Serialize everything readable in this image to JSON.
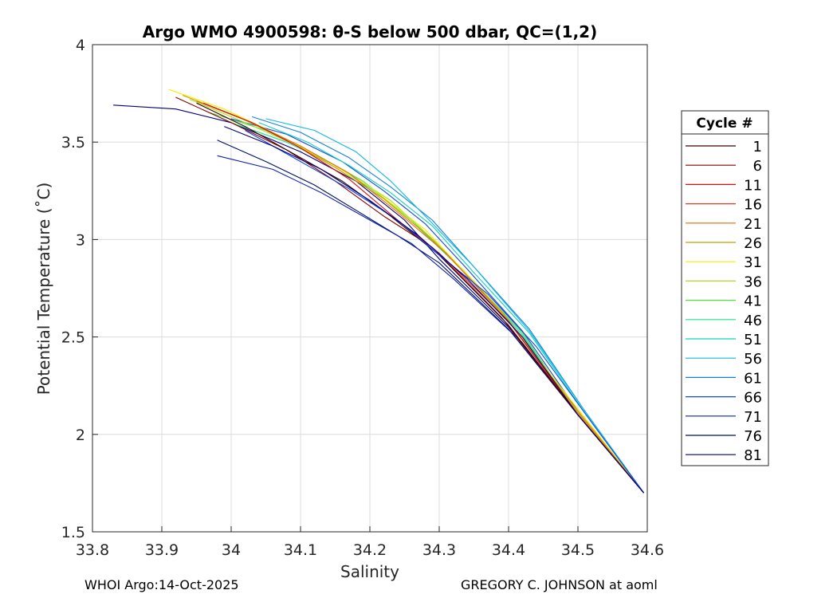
{
  "chart_data": {
    "type": "line",
    "title": "Argo WMO 4900598: θ-S below 500 dbar,  QC=(1,2)",
    "xlabel": "Salinity",
    "ylabel": "Potential Temperature (˚C)",
    "xlim": [
      33.8,
      34.6
    ],
    "ylim": [
      1.5,
      4
    ],
    "xticks": [
      33.8,
      33.9,
      34.0,
      34.1,
      34.2,
      34.3,
      34.4,
      34.5,
      34.6
    ],
    "xtick_labels": [
      "33.8",
      "33.9",
      "34",
      "34.1",
      "34.2",
      "34.3",
      "34.4",
      "34.5",
      "34.6"
    ],
    "yticks": [
      1.5,
      2,
      2.5,
      3,
      3.5,
      4
    ],
    "ytick_labels": [
      "1.5",
      "2",
      "2.5",
      "3",
      "3.5",
      "4"
    ],
    "grid": true,
    "legend": {
      "title": "Cycle #",
      "placement": "outside-right",
      "entries": [
        {
          "label": "1",
          "color": "#3a0000"
        },
        {
          "label": "6",
          "color": "#8a0000"
        },
        {
          "label": "11",
          "color": "#d41010"
        },
        {
          "label": "16",
          "color": "#e03a20"
        },
        {
          "label": "21",
          "color": "#e86a10"
        },
        {
          "label": "26",
          "color": "#c8a000"
        },
        {
          "label": "31",
          "color": "#f0f000"
        },
        {
          "label": "36",
          "color": "#a8e020"
        },
        {
          "label": "41",
          "color": "#50e040"
        },
        {
          "label": "46",
          "color": "#20e090"
        },
        {
          "label": "51",
          "color": "#10d0c0"
        },
        {
          "label": "56",
          "color": "#10b8e0"
        },
        {
          "label": "61",
          "color": "#1080e0"
        },
        {
          "label": "66",
          "color": "#1048e0"
        },
        {
          "label": "71",
          "color": "#1020b0"
        },
        {
          "label": "76",
          "color": "#001060"
        },
        {
          "label": "81",
          "color": "#000080"
        }
      ]
    },
    "series": [
      {
        "color": "#000080",
        "points": [
          [
            33.83,
            3.69
          ],
          [
            33.92,
            3.67
          ],
          [
            34.0,
            3.6
          ],
          [
            34.1,
            3.45
          ],
          [
            34.18,
            3.3
          ],
          [
            34.25,
            3.1
          ],
          [
            34.3,
            2.9
          ],
          [
            34.4,
            2.55
          ],
          [
            34.5,
            2.1
          ],
          [
            34.595,
            1.7
          ]
        ]
      },
      {
        "color": "#001060",
        "points": [
          [
            33.98,
            3.51
          ],
          [
            34.05,
            3.4
          ],
          [
            34.12,
            3.28
          ],
          [
            34.18,
            3.15
          ],
          [
            34.24,
            3.02
          ],
          [
            34.3,
            2.88
          ],
          [
            34.4,
            2.54
          ],
          [
            34.5,
            2.1
          ],
          [
            34.595,
            1.7
          ]
        ]
      },
      {
        "color": "#1020b0",
        "points": [
          [
            33.98,
            3.43
          ],
          [
            34.06,
            3.36
          ],
          [
            34.13,
            3.24
          ],
          [
            34.2,
            3.1
          ],
          [
            34.26,
            2.98
          ],
          [
            34.32,
            2.8
          ],
          [
            34.42,
            2.47
          ],
          [
            34.5,
            2.1
          ],
          [
            34.595,
            1.7
          ]
        ]
      },
      {
        "color": "#1048e0",
        "points": [
          [
            34.0,
            3.62
          ],
          [
            34.08,
            3.54
          ],
          [
            34.16,
            3.4
          ],
          [
            34.22,
            3.25
          ],
          [
            34.28,
            3.08
          ],
          [
            34.34,
            2.85
          ],
          [
            34.42,
            2.53
          ],
          [
            34.5,
            2.12
          ],
          [
            34.595,
            1.7
          ]
        ]
      },
      {
        "color": "#1080e0",
        "points": [
          [
            34.03,
            3.63
          ],
          [
            34.1,
            3.55
          ],
          [
            34.17,
            3.42
          ],
          [
            34.23,
            3.27
          ],
          [
            34.29,
            3.1
          ],
          [
            34.35,
            2.86
          ],
          [
            34.43,
            2.54
          ],
          [
            34.51,
            2.12
          ],
          [
            34.595,
            1.7
          ]
        ]
      },
      {
        "color": "#10b8e0",
        "points": [
          [
            34.05,
            3.62
          ],
          [
            34.12,
            3.56
          ],
          [
            34.18,
            3.45
          ],
          [
            34.23,
            3.3
          ],
          [
            34.28,
            3.12
          ],
          [
            34.35,
            2.86
          ],
          [
            34.43,
            2.53
          ],
          [
            34.51,
            2.12
          ],
          [
            34.595,
            1.7
          ]
        ]
      },
      {
        "color": "#10d0c0",
        "points": [
          [
            34.04,
            3.6
          ],
          [
            34.11,
            3.5
          ],
          [
            34.17,
            3.38
          ],
          [
            34.23,
            3.24
          ],
          [
            34.29,
            3.07
          ],
          [
            34.35,
            2.83
          ],
          [
            34.43,
            2.52
          ],
          [
            34.51,
            2.11
          ],
          [
            34.595,
            1.7
          ]
        ]
      },
      {
        "color": "#20e090",
        "points": [
          [
            34.0,
            3.6
          ],
          [
            34.08,
            3.5
          ],
          [
            34.15,
            3.38
          ],
          [
            34.21,
            3.24
          ],
          [
            34.27,
            3.06
          ],
          [
            34.34,
            2.82
          ],
          [
            34.42,
            2.51
          ],
          [
            34.5,
            2.1
          ],
          [
            34.595,
            1.7
          ]
        ]
      },
      {
        "color": "#50e040",
        "points": [
          [
            33.97,
            3.65
          ],
          [
            34.05,
            3.56
          ],
          [
            34.12,
            3.44
          ],
          [
            34.19,
            3.3
          ],
          [
            34.26,
            3.1
          ],
          [
            34.33,
            2.86
          ],
          [
            34.42,
            2.52
          ],
          [
            34.5,
            2.1
          ],
          [
            34.595,
            1.7
          ]
        ]
      },
      {
        "color": "#a8e020",
        "points": [
          [
            33.94,
            3.72
          ],
          [
            34.02,
            3.6
          ],
          [
            34.09,
            3.49
          ],
          [
            34.16,
            3.36
          ],
          [
            34.23,
            3.2
          ],
          [
            34.3,
            2.97
          ],
          [
            34.4,
            2.58
          ],
          [
            34.5,
            2.12
          ],
          [
            34.595,
            1.7
          ]
        ]
      },
      {
        "color": "#f0f000",
        "points": [
          [
            33.91,
            3.77
          ],
          [
            33.99,
            3.67
          ],
          [
            34.06,
            3.55
          ],
          [
            34.13,
            3.42
          ],
          [
            34.2,
            3.27
          ],
          [
            34.28,
            3.05
          ],
          [
            34.38,
            2.67
          ],
          [
            34.5,
            2.13
          ],
          [
            34.595,
            1.7
          ]
        ]
      },
      {
        "color": "#c8a000",
        "points": [
          [
            33.93,
            3.74
          ],
          [
            34.01,
            3.63
          ],
          [
            34.08,
            3.51
          ],
          [
            34.15,
            3.37
          ],
          [
            34.22,
            3.21
          ],
          [
            34.29,
            3.0
          ],
          [
            34.39,
            2.63
          ],
          [
            34.5,
            2.12
          ],
          [
            34.595,
            1.7
          ]
        ]
      },
      {
        "color": "#e86a10",
        "points": [
          [
            33.95,
            3.71
          ],
          [
            34.03,
            3.6
          ],
          [
            34.1,
            3.48
          ],
          [
            34.17,
            3.34
          ],
          [
            34.24,
            3.14
          ],
          [
            34.31,
            2.93
          ],
          [
            34.4,
            2.58
          ],
          [
            34.5,
            2.11
          ],
          [
            34.595,
            1.7
          ]
        ]
      },
      {
        "color": "#d41010",
        "points": [
          [
            33.96,
            3.7
          ],
          [
            34.03,
            3.6
          ],
          [
            34.1,
            3.47
          ],
          [
            34.17,
            3.31
          ],
          [
            34.24,
            3.1
          ],
          [
            34.3,
            2.93
          ],
          [
            34.4,
            2.58
          ],
          [
            34.5,
            2.1
          ],
          [
            34.595,
            1.7
          ]
        ]
      },
      {
        "color": "#8a0000",
        "points": [
          [
            33.92,
            3.73
          ],
          [
            34.0,
            3.6
          ],
          [
            34.08,
            3.46
          ],
          [
            34.15,
            3.3
          ],
          [
            34.22,
            3.12
          ],
          [
            34.29,
            2.96
          ],
          [
            34.39,
            2.6
          ],
          [
            34.5,
            2.1
          ],
          [
            34.595,
            1.7
          ]
        ]
      },
      {
        "color": "#3a0000",
        "points": [
          [
            33.95,
            3.7
          ],
          [
            34.02,
            3.58
          ],
          [
            34.09,
            3.44
          ],
          [
            34.16,
            3.3
          ],
          [
            34.23,
            3.12
          ],
          [
            34.3,
            2.92
          ],
          [
            34.4,
            2.56
          ],
          [
            34.5,
            2.1
          ],
          [
            34.595,
            1.7
          ]
        ]
      },
      {
        "color": "#1048e0",
        "points": [
          [
            34.02,
            3.56
          ],
          [
            34.1,
            3.4
          ],
          [
            34.17,
            3.26
          ],
          [
            34.24,
            3.1
          ],
          [
            34.3,
            2.92
          ],
          [
            34.37,
            2.72
          ],
          [
            34.44,
            2.45
          ],
          [
            34.52,
            2.06
          ],
          [
            34.595,
            1.7
          ]
        ]
      },
      {
        "color": "#000080",
        "points": [
          [
            33.99,
            3.58
          ],
          [
            34.06,
            3.48
          ],
          [
            34.13,
            3.36
          ],
          [
            34.2,
            3.2
          ],
          [
            34.27,
            3.02
          ],
          [
            34.34,
            2.8
          ],
          [
            34.42,
            2.5
          ],
          [
            34.5,
            2.1
          ],
          [
            34.595,
            1.7
          ]
        ]
      }
    ]
  },
  "footer": {
    "left": "WHOI Argo:14-Oct-2025",
    "right": "GREGORY C. JOHNSON at aoml"
  }
}
